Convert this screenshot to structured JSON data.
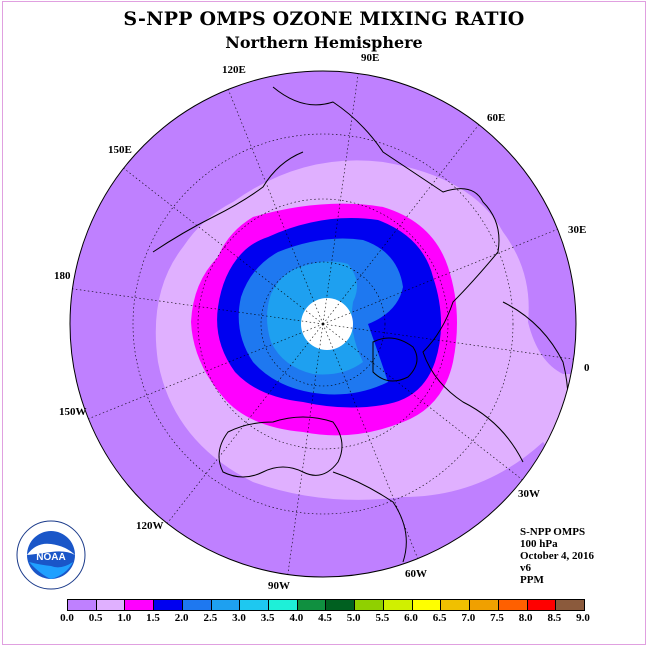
{
  "title": "S-NPP OMPS OZONE MIXING RATIO",
  "subtitle": "Northern Hemisphere",
  "longitude_labels": [
    "90E",
    "60E",
    "30E",
    "0",
    "30W",
    "60W",
    "90W",
    "120W",
    "150W",
    "180",
    "150E",
    "120E"
  ],
  "info": {
    "instrument": "S-NPP OMPS",
    "pressure": "100 hPa",
    "date": "October 4, 2016",
    "version": "v6",
    "units": "PPM"
  },
  "colorbar": {
    "ticks": [
      "0.0",
      "0.5",
      "1.0",
      "1.5",
      "2.0",
      "2.5",
      "3.0",
      "3.5",
      "4.0",
      "4.5",
      "5.0",
      "5.5",
      "6.0",
      "6.5",
      "7.0",
      "7.5",
      "8.0",
      "8.5",
      "9.0"
    ],
    "colors": [
      "#bf80ff",
      "#e0b0ff",
      "#ff00ff",
      "#0000f0",
      "#1e78f0",
      "#1ea0f0",
      "#1ec8f0",
      "#1ef0d8",
      "#109040",
      "#006020",
      "#90d000",
      "#d0f000",
      "#ffff00",
      "#f0c000",
      "#f0a000",
      "#ff6000",
      "#ff0000",
      "#8b5a3c"
    ]
  },
  "logo_text": "NOAA",
  "logo_ring_text": "NATIONAL OCEANIC AND ATMOSPHERIC ADMINISTRATION · U.S. DEPARTMENT OF COMMERCE",
  "map_colors": {
    "outer": "#bf80ff",
    "band_05": "#e0b0ff",
    "band_10": "#ff00ff",
    "band_15": "#0000f0",
    "band_20": "#1e78f0",
    "band_25": "#1ea0f0",
    "pole": "#ffffff"
  }
}
